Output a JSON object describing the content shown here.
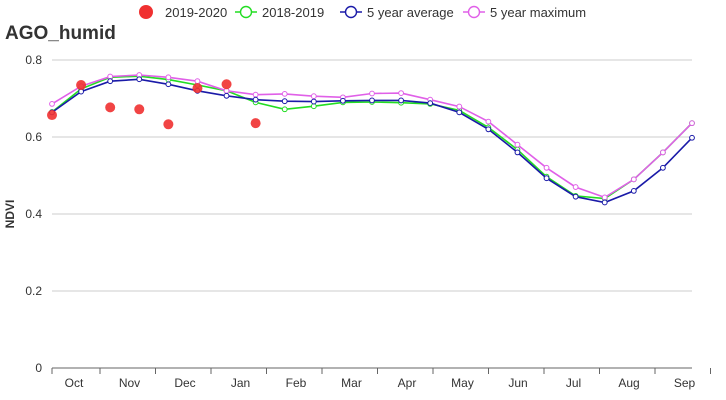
{
  "chart_data": {
    "type": "line",
    "title": "AGO_humid",
    "ylabel": "NDVI",
    "xlabel": "",
    "ylim": [
      0,
      0.8
    ],
    "yticks": [
      0,
      0.2,
      0.4,
      0.6,
      0.8
    ],
    "ytick_labels": [
      "0",
      "0.2",
      "0.4",
      "0.6",
      "0.8"
    ],
    "month_labels": [
      "Oct",
      "Nov",
      "Dec",
      "Jan",
      "Feb",
      "Mar",
      "Apr",
      "May",
      "Jun",
      "Jul",
      "Aug",
      "Sep"
    ],
    "x_periods": 23,
    "grid": "horizontal",
    "legend_position": "top",
    "series": [
      {
        "name": "2019-2020",
        "style": "scatter",
        "color": "#f03030",
        "x": [
          0,
          1,
          2,
          3,
          4,
          5,
          6,
          7
        ],
        "values": [
          0.657,
          0.735,
          0.677,
          0.672,
          0.633,
          0.727,
          0.737,
          0.636
        ]
      },
      {
        "name": "2018-2019",
        "style": "line",
        "color": "#22dd22",
        "values": [
          0.665,
          0.725,
          0.755,
          0.758,
          0.749,
          0.735,
          0.72,
          0.69,
          0.672,
          0.68,
          0.69,
          0.691,
          0.689,
          0.686,
          0.669,
          0.625,
          0.567,
          0.497,
          0.447,
          0.44,
          0.49,
          0.56,
          0.636
        ]
      },
      {
        "name": "5 year average",
        "style": "line",
        "color": "#1a1aa8",
        "values": [
          0.664,
          0.718,
          0.745,
          0.75,
          0.737,
          0.72,
          0.707,
          0.697,
          0.693,
          0.692,
          0.694,
          0.695,
          0.695,
          0.688,
          0.664,
          0.62,
          0.56,
          0.493,
          0.445,
          0.43,
          0.46,
          0.52,
          0.598
        ]
      },
      {
        "name": "5 year maximum",
        "style": "line",
        "color": "#e060e8",
        "values": [
          0.686,
          0.732,
          0.757,
          0.761,
          0.755,
          0.745,
          0.72,
          0.71,
          0.712,
          0.706,
          0.703,
          0.713,
          0.714,
          0.697,
          0.679,
          0.64,
          0.58,
          0.52,
          0.47,
          0.443,
          0.49,
          0.56,
          0.636
        ]
      }
    ]
  }
}
